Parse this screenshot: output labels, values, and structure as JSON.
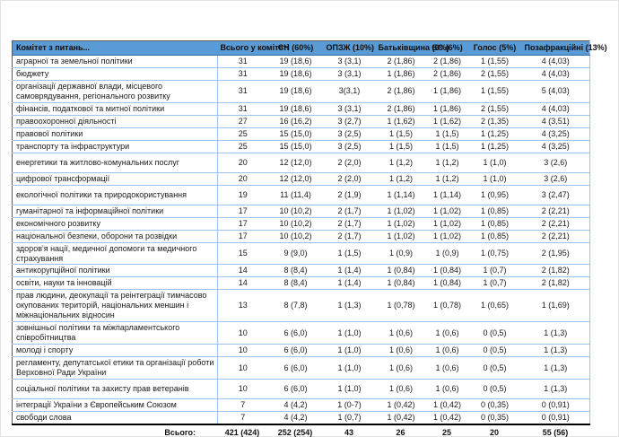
{
  "colors": {
    "header_bg": "#5b9bd5",
    "row_separator": "#9dc3e6",
    "outer_border": "#595959",
    "bottom_rule": "#000000",
    "text": "#1a1a1a",
    "page_bg": "#ffffff"
  },
  "table": {
    "header": {
      "committee": "Комітет з питань...",
      "columns": [
        "Всього у комітеті",
        "СН (60%)",
        "ОПЗЖ (10%)",
        "Батьківщина (6%)",
        "ЄС (6%)",
        "Голос (5%)",
        "Позафракційні (13%)"
      ]
    },
    "rows": [
      {
        "name": "аграрної та земельної політики",
        "values": [
          "31",
          "19 (18,6)",
          "3 (3,1)",
          "2 (1,86)",
          "2 (1,86)",
          "1 (1,55)",
          "4 (4,03)"
        ],
        "tall": false
      },
      {
        "name": "бюджету",
        "values": [
          "31",
          "19 (18,6)",
          "3 (3,1)",
          "1 (1,86)",
          "2 (1,86)",
          "2 (1,55)",
          "4 (4,03)"
        ],
        "tall": false
      },
      {
        "name": "організації державної влади, місцевого самоврядування, регіонального розвитку",
        "values": [
          "31",
          "19 (18,6)",
          "3(3,1)",
          "2 (1,86)",
          "1 (1,86)",
          "1 (1,55)",
          "5 (4,03)"
        ],
        "tall": false
      },
      {
        "name": "фінансів, податкової та митної політики",
        "values": [
          "31",
          "19 (18,6)",
          "3 (3,1)",
          "2 (1,86)",
          "1 (1,86)",
          "2 (1,55)",
          "4 (4,03)"
        ],
        "tall": false
      },
      {
        "name": "правоохоронної діяльності",
        "values": [
          "27",
          "16 (16,2)",
          "3 (2,7)",
          "1 (1,62)",
          "1 (1,62)",
          "2 (1,35)",
          "4 (3,51)"
        ],
        "tall": false
      },
      {
        "name": "правової політики",
        "values": [
          "25",
          "15 (15,0)",
          "3 (2,5)",
          "1 (1,5)",
          "1 (1,5)",
          "1 (1,25)",
          "4 (3,25)"
        ],
        "tall": false
      },
      {
        "name": "транспорту та інфраструктури",
        "values": [
          "25",
          "15 (15,0)",
          "3 (2,5)",
          "1 (1,5)",
          "1 (1,5)",
          "1 (1,25)",
          "4 (3,25)"
        ],
        "tall": false
      },
      {
        "name": "енергетики та житлово-комунальних послуг",
        "values": [
          "20",
          "12 (12,0)",
          "2 (2,0)",
          "1 (1,2)",
          "1 (1,2)",
          "1 (1,0)",
          "3 (2,6)"
        ],
        "tall": true
      },
      {
        "name": "цифрової трансформації",
        "values": [
          "20",
          "12 (12,0)",
          "2 (2,0)",
          "1 (1,2)",
          "1 (1,2)",
          "1 (1,0)",
          "3 (2,6)"
        ],
        "tall": false
      },
      {
        "name": "екологічної політики та природокористування",
        "values": [
          "19",
          "11 (11,4)",
          "2 (1,9)",
          "1 (1,14)",
          "1 (1,14)",
          "1 (0,95)",
          "3 (2,47)"
        ],
        "tall": true
      },
      {
        "name": "гуманітарної та інформаційної політики",
        "values": [
          "17",
          "10 (10,2)",
          "2 (1,7)",
          "1 (1,02)",
          "1 (1,02)",
          "1 (0,85)",
          "2 (2,21)"
        ],
        "tall": false
      },
      {
        "name": "економічного розвитку",
        "values": [
          "17",
          "10 (10,2)",
          "2 (1,7)",
          "1 (1,02)",
          "1 (1,02)",
          "1 (0,85)",
          "2 (2,21)"
        ],
        "tall": false
      },
      {
        "name": "національної безпеки, оборони та розвідки",
        "values": [
          "17",
          "10 (10,2)",
          "2 (1,7)",
          "1 (1,02)",
          "1 (1,02)",
          "1 (0,85)",
          "2 (2,21)"
        ],
        "tall": false
      },
      {
        "name": "здоров'я нації, медичної допомоги та медичного страхування",
        "values": [
          "15",
          "9 (9,0)",
          "1 (1,5)",
          "1 (0,9)",
          "1 (0,9)",
          "1 (0,75)",
          "2 (1,95)"
        ],
        "tall": false
      },
      {
        "name": "антикорупційної політики",
        "values": [
          "14",
          "8 (8,4)",
          "1 (1,4)",
          "1 (0,84)",
          "1 (0,84)",
          "1 (0,7)",
          "2 (1,82)"
        ],
        "tall": false
      },
      {
        "name": "освіти, науки та інновацій",
        "values": [
          "14",
          "8 (8,4)",
          "1 (1,4)",
          "1 (0,84)",
          "1 (0,84)",
          "1 (0,7)",
          "2 (1,82)"
        ],
        "tall": false
      },
      {
        "name": "прав людини, деокупації та реінтеграції тимчасово окупованих територій, національних меншин і міжнаціональних відносин",
        "values": [
          "13",
          "8 (7,8)",
          "1 (1,3)",
          "1 (0,78)",
          "1 (0,78)",
          "1 (0,65)",
          "1 (1,69)"
        ],
        "tall": false
      },
      {
        "name": "зовнішньої політики та міжпарламентського співробітництва",
        "values": [
          "10",
          "6 (6,0)",
          "1 (1,0)",
          "1 (0,6)",
          "1 (0,6)",
          "0 (0,5)",
          "1 (1,3)"
        ],
        "tall": false
      },
      {
        "name": "молоді і спорту",
        "values": [
          "10",
          "6 (6,0)",
          "1 (1,0)",
          "1 (0,6)",
          "1 (0,6)",
          "0 (0,5)",
          "1 (1,3)"
        ],
        "tall": false
      },
      {
        "name": "регламенту, депутатської етики та організації роботи Верховної Ради України",
        "values": [
          "10",
          "6 (6,0)",
          "1 (1,0)",
          "1 (0,6)",
          "1 (0,6)",
          "0 (0,5)",
          "1 (1,3)"
        ],
        "tall": false
      },
      {
        "name": "соціальної політики та захисту прав ветеранів",
        "values": [
          "10",
          "6 (6,0)",
          "1 (1,0)",
          "1 (0,6)",
          "1 (0,6)",
          "0 (0,5)",
          "1 (1,3)"
        ],
        "tall": true
      },
      {
        "name": "інтеграції України з Європейським Союзом",
        "values": [
          "7",
          "4 (4,2)",
          "1 (0-7)",
          "1 (0,42)",
          "1 (0,42)",
          "0 (0,35)",
          "0 (0,91)"
        ],
        "tall": false
      },
      {
        "name": "свободи слова",
        "values": [
          "7",
          "4 (4,2)",
          "1 (0,7)",
          "1 (0,42)",
          "1 (0,42)",
          "0 (0,35)",
          "0 (0,91)"
        ],
        "tall": false
      }
    ],
    "totals": {
      "label": "Всього:",
      "values": [
        "421 (424)",
        "252 (254)",
        "43",
        "26",
        "25",
        "20",
        "55 (56)"
      ]
    }
  }
}
